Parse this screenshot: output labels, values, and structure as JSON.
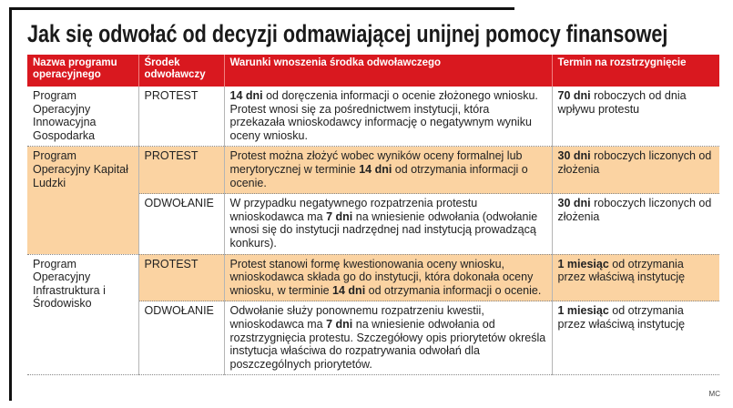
{
  "title": "Jak się odwołać od decyzji odmawiającej unijnej pomocy finansowej",
  "table": {
    "header": [
      "Nazwa programu operacyjnego",
      "Środek odwoławczy",
      "Warunki wnoszenia środka odwoławczego",
      "Termin na rozstrzygnięcie"
    ],
    "rows": [
      {
        "program": "Program Operacyjny Innowacyjna Gospodarka",
        "measures": [
          {
            "measure": "PROTEST",
            "conditions": [
              {
                "text": "14 dni",
                "bold": true
              },
              {
                "text": " od doręczenia informacji o ocenie złożonego wniosku. Protest wnosi się za pośrednictwem instytucji, która przekazała wnioskodawcy informację o negatywnym wyniku oceny wniosku.",
                "bold": false
              }
            ],
            "deadline": [
              {
                "text": "70 dni",
                "bold": true
              },
              {
                "text": " roboczych od dnia wpływu protestu",
                "bold": false
              }
            ]
          }
        ]
      },
      {
        "program": "Program Operacyjny Kapitał Ludzki",
        "measures": [
          {
            "measure": "PROTEST",
            "conditions": [
              {
                "text": "Protest można złożyć wobec wyników oceny formalnej lub merytorycznej w terminie ",
                "bold": false
              },
              {
                "text": "14 dni",
                "bold": true
              },
              {
                "text": " od otrzymania informacji o ocenie.",
                "bold": false
              }
            ],
            "deadline": [
              {
                "text": "30 dni",
                "bold": true
              },
              {
                "text": " roboczych liczonych od złożenia",
                "bold": false
              }
            ]
          },
          {
            "measure": "ODWOŁANIE",
            "conditions": [
              {
                "text": "W przypadku negatywnego rozpatrzenia protestu wnioskodawca ma ",
                "bold": false
              },
              {
                "text": "7 dni",
                "bold": true
              },
              {
                "text": " na wniesienie odwołania (odwołanie wnosi się do instytucji nadrzędnej nad instytucją prowadzącą konkurs).",
                "bold": false
              }
            ],
            "deadline": [
              {
                "text": "30 dni",
                "bold": true
              },
              {
                "text": " roboczych liczonych od złożenia",
                "bold": false
              }
            ]
          }
        ]
      },
      {
        "program": "Program Operacyjny Infrastruktura i Środowisko",
        "measures": [
          {
            "measure": "PROTEST",
            "conditions": [
              {
                "text": "Protest stanowi formę kwestionowania oceny wniosku, wnioskodawca składa go do instytucji, która dokonała oceny wniosku, w terminie ",
                "bold": false
              },
              {
                "text": "14 dni",
                "bold": true
              },
              {
                "text": " od otrzymania informacji o ocenie.",
                "bold": false
              }
            ],
            "deadline": [
              {
                "text": "1 miesiąc",
                "bold": true
              },
              {
                "text": " od otrzymania przez właściwą instytucję",
                "bold": false
              }
            ]
          },
          {
            "measure": "ODWOŁANIE",
            "conditions": [
              {
                "text": "Odwołanie służy ponownemu rozpatrzeniu kwestii, wnioskodawca ma ",
                "bold": false
              },
              {
                "text": "7 dni",
                "bold": true
              },
              {
                "text": " na wniesienie odwołania od rozstrzygnięcia protestu. Szczegółowy opis priorytetów określa instytucja właściwa do rozpatrywania odwołań dla poszczególnych priorytetów.",
                "bold": false
              }
            ],
            "deadline": [
              {
                "text": "1 miesiąc",
                "bold": true
              },
              {
                "text": " od otrzymania przez właściwą instytucję",
                "bold": false
              }
            ]
          }
        ]
      }
    ]
  },
  "credit": "MC"
}
